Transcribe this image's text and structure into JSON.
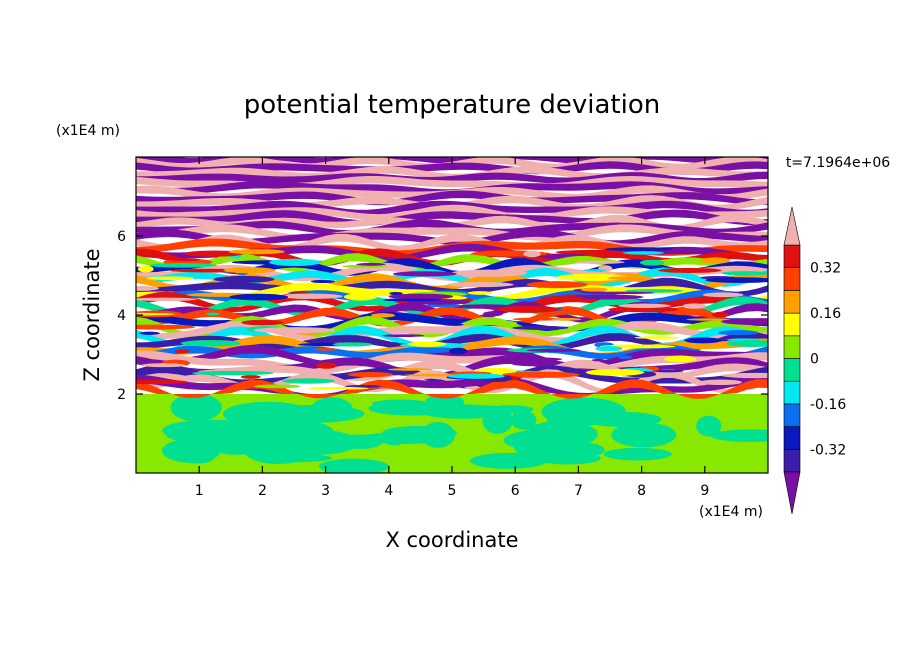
{
  "chart_data": {
    "type": "heatmap",
    "title": "potential temperature deviation",
    "xlabel": "X coordinate",
    "ylabel": "Z coordinate",
    "x_unit": "(x1E4 m)",
    "y_unit": "(x1E4 m)",
    "time_label": "t=7.1964e+06",
    "xlim": [
      0,
      10
    ],
    "ylim": [
      0,
      8
    ],
    "x_ticks": [
      1,
      2,
      3,
      4,
      5,
      6,
      7,
      8,
      9
    ],
    "y_ticks": [
      2,
      4,
      6
    ],
    "colorbar": {
      "levels": [
        -0.4,
        -0.32,
        -0.24,
        -0.16,
        -0.08,
        0,
        0.08,
        0.16,
        0.24,
        0.32,
        0.4
      ],
      "labeled_ticks": [
        "0.32",
        "0.16",
        "0",
        "-0.16",
        "-0.32"
      ],
      "labeled_values": [
        0.32,
        0.16,
        0,
        -0.16,
        -0.32
      ],
      "colors": [
        "#7a0fa5",
        "#3a1ea8",
        "#0a18c0",
        "#0a6ff0",
        "#00e8f0",
        "#00e090",
        "#88e800",
        "#ffff00",
        "#ffa000",
        "#ff4000",
        "#e01010",
        "#f0b0b0"
      ],
      "extend": "both"
    },
    "regions": [
      {
        "z_range": [
          0,
          2
        ],
        "description_values": [
          0,
          0.08
        ],
        "colors": [
          "#00e090",
          "#88e800"
        ]
      },
      {
        "z_range": [
          2,
          8
        ],
        "description_values": [
          -0.4,
          0.4
        ],
        "colors": "full"
      }
    ]
  }
}
